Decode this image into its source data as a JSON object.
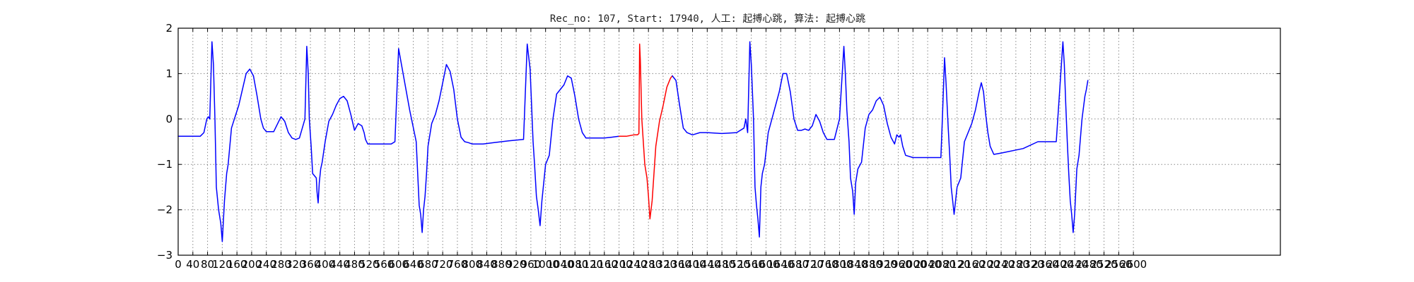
{
  "chart_data": {
    "type": "line",
    "title": "Rec_no: 107, Start: 17940, 人工: 起搏心跳, 算法: 起搏心跳",
    "xlabel": "",
    "ylabel": "",
    "xlim": [
      0,
      3000
    ],
    "ylim": [
      -3,
      2
    ],
    "grid": true,
    "xticks": [
      0,
      40,
      80,
      120,
      160,
      200,
      240,
      280,
      320,
      360,
      400,
      440,
      480,
      520,
      560,
      600,
      640,
      680,
      720,
      760,
      800,
      840,
      880,
      920,
      960,
      1000,
      1040,
      1080,
      1120,
      1160,
      1200,
      1240,
      1280,
      1320,
      1360,
      1400,
      1440,
      1480,
      1520,
      1560,
      1600,
      1640,
      1680,
      1720,
      1760,
      1800,
      1840,
      1880,
      1920,
      1960,
      2000,
      2040,
      2080,
      2120,
      2160,
      2200,
      2240,
      2280,
      2320,
      2360,
      2400,
      2440,
      2480,
      2520,
      2560,
      2600
    ],
    "xticklabels": [
      "0",
      "40",
      "80",
      "120",
      "160",
      "200",
      "240",
      "280",
      "320",
      "360",
      "400",
      "440",
      "480",
      "520",
      "560",
      "600",
      "640",
      "680",
      "720",
      "760",
      "800",
      "840",
      "880",
      "920",
      "960",
      "1000",
      "1040",
      "1080",
      "1120",
      "1160",
      "1200",
      "1240",
      "1280",
      "1320",
      "1360",
      "1400",
      "1440",
      "1480",
      "1520",
      "1560",
      "1600",
      "1640",
      "1680",
      "1720",
      "1760",
      "1800",
      "1840",
      "1880",
      "1920",
      "1960",
      "2000",
      "2040",
      "2080",
      "2120",
      "2160",
      "2200",
      "2240",
      "2280",
      "2320",
      "2360",
      "2400",
      "2440",
      "2480",
      "2520",
      "2560",
      "2600"
    ],
    "yticks": [
      2,
      1,
      0,
      -1,
      -2,
      -3
    ],
    "yticklabels": [
      "2",
      "1",
      "0",
      "−1",
      "−2",
      "−3"
    ],
    "colors": {
      "signal": "#0000ff",
      "highlight": "#ff0000",
      "grid": "#888888",
      "frame": "#000000"
    },
    "series": [
      {
        "color": "#0000ff",
        "x": [
          0,
          60,
          70,
          78,
          82,
          86,
          92,
          96,
          100,
          104,
          110,
          116,
          120,
          126,
          132,
          136,
          145,
          155,
          165,
          175,
          185,
          195,
          205,
          215,
          225,
          232,
          240,
          260,
          280,
          290,
          300,
          310,
          320,
          330,
          345,
          350,
          354,
          357,
          362,
          366,
          376,
          378,
          381,
          384,
          388,
          392,
          400,
          410,
          420,
          430,
          440,
          450,
          460,
          470,
          480,
          490,
          500,
          506,
          510,
          516,
          522,
          530,
          540,
          560,
          580,
          590,
          600,
          630,
          648,
          652,
          656,
          660,
          664,
          668,
          672,
          676,
          680,
          690,
          700,
          710,
          720,
          730,
          740,
          750,
          760,
          770,
          780,
          790,
          800,
          810,
          830,
          860,
          900,
          940,
          950,
          958,
          962,
          966,
          970,
          975,
          980,
          985,
          990,
          1000,
          1010,
          1020,
          1030,
          1040,
          1050,
          1060,
          1070,
          1080,
          1090,
          1100,
          1110,
          1120,
          1130,
          1140,
          1160,
          1180,
          1200
        ],
        "y": [
          -0.38,
          -0.38,
          -0.3,
          0.0,
          0.05,
          0.0,
          1.7,
          1.2,
          0.0,
          -1.5,
          -2.0,
          -2.3,
          -2.7,
          -1.8,
          -1.2,
          -1.0,
          -0.2,
          0.05,
          0.3,
          0.65,
          1.0,
          1.1,
          0.95,
          0.5,
          0.0,
          -0.2,
          -0.28,
          -0.28,
          0.05,
          -0.05,
          -0.3,
          -0.42,
          -0.45,
          -0.42,
          0.0,
          1.6,
          1.0,
          0.0,
          -0.6,
          -1.2,
          -1.3,
          -1.6,
          -1.85,
          -1.4,
          -1.1,
          -0.95,
          -0.5,
          -0.05,
          0.1,
          0.3,
          0.45,
          0.5,
          0.4,
          0.1,
          -0.25,
          -0.1,
          -0.15,
          -0.3,
          -0.45,
          -0.55,
          -0.55,
          -0.55,
          -0.55,
          -0.55,
          -0.55,
          -0.5,
          1.55,
          0.2,
          -0.5,
          -1.2,
          -1.9,
          -2.1,
          -2.5,
          -2.0,
          -1.7,
          -1.2,
          -0.6,
          -0.1,
          0.1,
          0.4,
          0.8,
          1.2,
          1.05,
          0.65,
          0.0,
          -0.4,
          -0.5,
          -0.52,
          -0.55,
          -0.55,
          -0.55,
          -0.52,
          -0.48,
          -0.45,
          1.65,
          1.1,
          0.3,
          -0.5,
          -1.0,
          -1.7,
          -2.0,
          -2.35,
          -1.8,
          -1.0,
          -0.8,
          0.0,
          0.55,
          0.65,
          0.75,
          0.95,
          0.9,
          0.5,
          0.0,
          -0.3,
          -0.42,
          -0.42,
          -0.42,
          -0.42,
          -0.42,
          -0.4,
          -0.38
        ]
      },
      {
        "color": "#ff0000",
        "x": [
          1200,
          1220,
          1240,
          1250,
          1254,
          1256,
          1258,
          1262,
          1266,
          1270,
          1276,
          1280,
          1284,
          1290,
          1300,
          1310,
          1320,
          1330,
          1340,
          1345
        ],
        "y": [
          -0.38,
          -0.38,
          -0.35,
          -0.35,
          -0.32,
          1.65,
          1.3,
          0.0,
          -0.5,
          -1.0,
          -1.3,
          -1.7,
          -2.2,
          -1.8,
          -0.6,
          -0.05,
          0.3,
          0.7,
          0.9,
          0.95
        ]
      },
      {
        "color": "#0000ff",
        "x": [
          1345,
          1355,
          1365,
          1375,
          1385,
          1400,
          1420,
          1440,
          1480,
          1520,
          1540,
          1545,
          1550,
          1556,
          1560,
          1566,
          1570,
          1574,
          1578,
          1582,
          1586,
          1590,
          1596,
          1606,
          1616,
          1626,
          1636,
          1646,
          1656,
          1666,
          1676,
          1686,
          1696,
          1706,
          1716,
          1726,
          1736,
          1746,
          1756,
          1766,
          1776,
          1786,
          1800,
          1812,
          1816,
          1820,
          1826,
          1830,
          1836,
          1840,
          1844,
          1850,
          1860,
          1870,
          1880,
          1890,
          1900,
          1910,
          1920,
          1930,
          1940,
          1950,
          1956,
          1962,
          1966,
          1972,
          1980,
          2000,
          2040,
          2076,
          2080,
          2086,
          2090,
          2096,
          2100,
          2104,
          2108,
          2112,
          2120,
          2130,
          2140,
          2150,
          2160,
          2170,
          2180,
          2186,
          2192,
          2198,
          2204,
          2210,
          2220,
          2240,
          2300,
          2340,
          2390,
          2408,
          2412,
          2416,
          2420,
          2424,
          2428,
          2432,
          2436,
          2440,
          2446,
          2452,
          2460,
          2468,
          2472,
          2476
        ],
        "y": [
          0.95,
          0.85,
          0.3,
          -0.2,
          -0.3,
          -0.35,
          -0.3,
          -0.3,
          -0.32,
          -0.3,
          -0.2,
          0.0,
          -0.3,
          1.7,
          1.2,
          0.0,
          -1.5,
          -1.9,
          -2.2,
          -2.6,
          -1.5,
          -1.2,
          -1.0,
          -0.3,
          0.0,
          0.3,
          0.6,
          1.0,
          1.0,
          0.6,
          0.0,
          -0.25,
          -0.25,
          -0.22,
          -0.25,
          -0.15,
          0.1,
          -0.05,
          -0.3,
          -0.45,
          -0.45,
          -0.45,
          0.0,
          1.6,
          1.0,
          0.2,
          -0.5,
          -1.3,
          -1.6,
          -2.1,
          -1.4,
          -1.1,
          -0.95,
          -0.2,
          0.1,
          0.2,
          0.4,
          0.48,
          0.3,
          -0.1,
          -0.4,
          -0.55,
          -0.35,
          -0.4,
          -0.35,
          -0.6,
          -0.8,
          -0.85,
          -0.85,
          -0.85,
          0.0,
          1.35,
          0.8,
          -0.2,
          -0.8,
          -1.5,
          -1.8,
          -2.1,
          -1.5,
          -1.3,
          -0.5,
          -0.3,
          -0.1,
          0.2,
          0.6,
          0.8,
          0.6,
          0.1,
          -0.3,
          -0.6,
          -0.78,
          -0.75,
          -0.65,
          -0.5,
          -0.5,
          1.7,
          1.2,
          0.3,
          -0.5,
          -1.2,
          -1.8,
          -2.1,
          -2.5,
          -2.1,
          -1.1,
          -0.8,
          0.0,
          0.5,
          0.65,
          0.85
        ]
      }
    ]
  }
}
